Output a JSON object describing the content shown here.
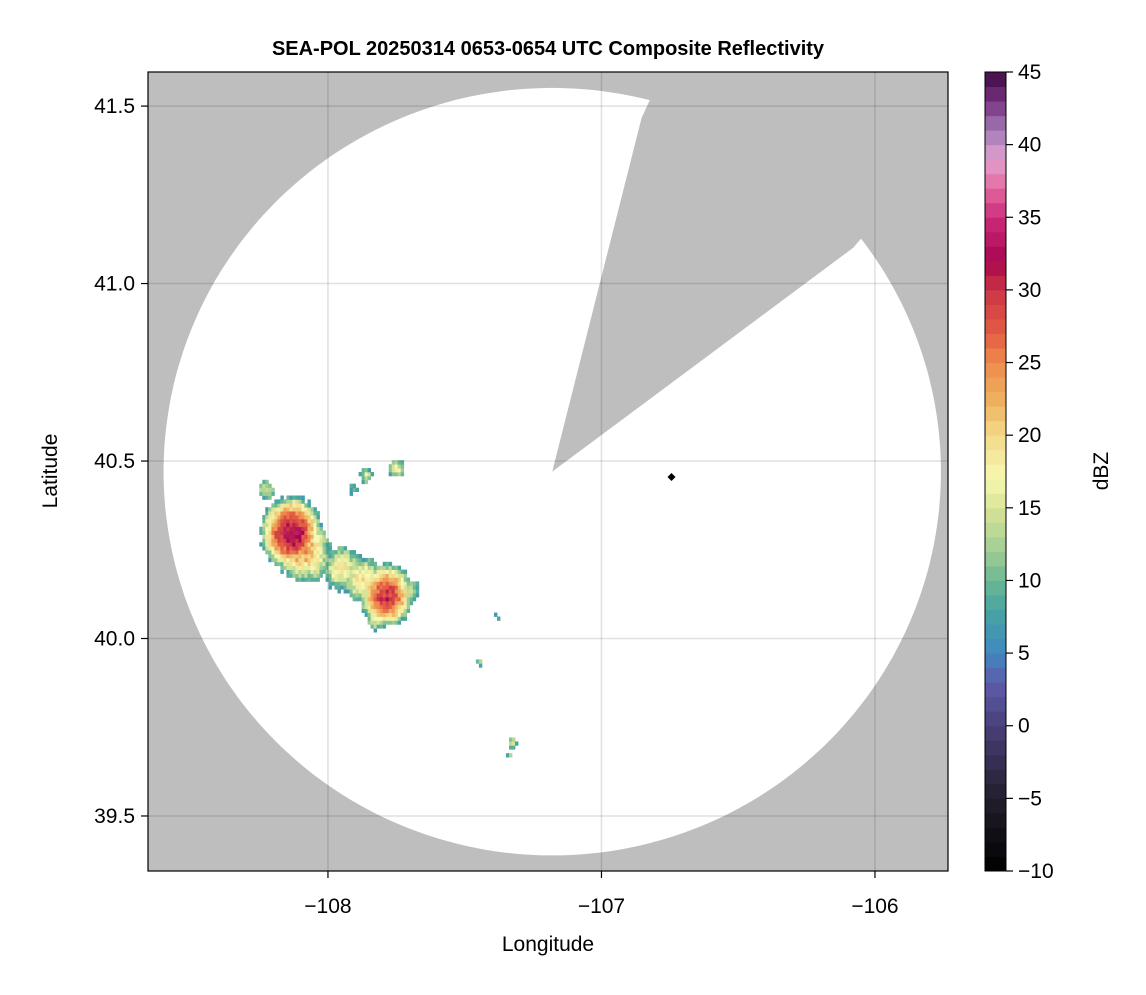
{
  "chart_data": {
    "type": "heatmap",
    "title": "SEA-POL 20250314 0653-0654 UTC Composite Reflectivity",
    "xlabel": "Longitude",
    "ylabel": "Latitude",
    "xlim": [
      -108.658,
      -105.733
    ],
    "ylim": [
      39.345,
      41.596
    ],
    "xticks": [
      -108,
      -107,
      -106
    ],
    "xtick_labels": [
      "−108",
      "−107",
      "−106"
    ],
    "yticks": [
      39.5,
      40.0,
      40.5,
      41.0,
      41.5
    ],
    "ytick_labels": [
      "39.5",
      "40.0",
      "40.5",
      "41.0",
      "41.5"
    ],
    "grid": true,
    "colorbar": {
      "label": "dBZ",
      "range": [
        -10,
        45
      ],
      "ticks": [
        -10,
        -5,
        0,
        5,
        10,
        15,
        20,
        25,
        30,
        35,
        40,
        45
      ],
      "tick_labels": [
        "−10",
        "−5",
        "0",
        "5",
        "10",
        "15",
        "20",
        "25",
        "30",
        "35",
        "40",
        "45"
      ],
      "step": 1,
      "colormap_stops": [
        [
          -10,
          "#000000"
        ],
        [
          -5,
          "#221e2c"
        ],
        [
          0,
          "#4a3f7a"
        ],
        [
          3,
          "#5e5cab"
        ],
        [
          5,
          "#3f88c0"
        ],
        [
          8,
          "#48a5a0"
        ],
        [
          10,
          "#6ab894"
        ],
        [
          12,
          "#a0cd95"
        ],
        [
          15,
          "#d8e496"
        ],
        [
          17,
          "#f6f8b0"
        ],
        [
          20,
          "#f3d98a"
        ],
        [
          22,
          "#eeb763"
        ],
        [
          25,
          "#ee8a4b"
        ],
        [
          27,
          "#e45d45"
        ],
        [
          30,
          "#cc3545"
        ],
        [
          32,
          "#a8064e"
        ],
        [
          35,
          "#cc2b7c"
        ],
        [
          37,
          "#e36aa0"
        ],
        [
          39,
          "#e0a2cf"
        ],
        [
          41,
          "#a37ab7"
        ],
        [
          43,
          "#77327f"
        ],
        [
          45,
          "#3d0a43"
        ]
      ]
    },
    "no_coverage_color": "#bebebe",
    "coverage_color": "#ffffff",
    "radar": {
      "lon": -107.18,
      "lat": 40.47,
      "max_range_km": 120,
      "blocked_azimuths_deg": [
        14,
        53
      ]
    },
    "marker": {
      "lon": -106.744,
      "lat": 40.455,
      "shape": "diamond",
      "color": "#000000"
    },
    "echo_cells": [
      {
        "lon": -108.139,
        "lat": 40.292,
        "peak_dbz": 33,
        "size_deg": 0.055
      },
      {
        "lon": -108.1,
        "lat": 40.25,
        "peak_dbz": 24,
        "size_deg": 0.06
      },
      {
        "lon": -108.066,
        "lat": 40.221,
        "peak_dbz": 19,
        "size_deg": 0.05
      },
      {
        "lon": -107.956,
        "lat": 40.193,
        "peak_dbz": 18,
        "size_deg": 0.05
      },
      {
        "lon": -107.88,
        "lat": 40.16,
        "peak_dbz": 19,
        "size_deg": 0.05
      },
      {
        "lon": -107.792,
        "lat": 40.117,
        "peak_dbz": 30,
        "size_deg": 0.05
      },
      {
        "lon": -107.83,
        "lat": 40.05,
        "peak_dbz": 17,
        "size_deg": 0.025
      },
      {
        "lon": -107.7,
        "lat": 40.13,
        "peak_dbz": 13,
        "size_deg": 0.03
      },
      {
        "lon": -108.23,
        "lat": 40.413,
        "peak_dbz": 15,
        "size_deg": 0.025
      },
      {
        "lon": -107.755,
        "lat": 40.475,
        "peak_dbz": 17,
        "size_deg": 0.022
      },
      {
        "lon": -107.865,
        "lat": 40.452,
        "peak_dbz": 15,
        "size_deg": 0.02
      },
      {
        "lon": -107.912,
        "lat": 40.418,
        "peak_dbz": 11,
        "size_deg": 0.02
      },
      {
        "lon": -107.386,
        "lat": 40.058,
        "peak_dbz": 10,
        "size_deg": 0.012
      },
      {
        "lon": -107.452,
        "lat": 39.928,
        "peak_dbz": 12,
        "size_deg": 0.013
      },
      {
        "lon": -107.331,
        "lat": 39.7,
        "peak_dbz": 16,
        "size_deg": 0.014
      },
      {
        "lon": -107.34,
        "lat": 39.665,
        "peak_dbz": 14,
        "size_deg": 0.008
      }
    ]
  }
}
